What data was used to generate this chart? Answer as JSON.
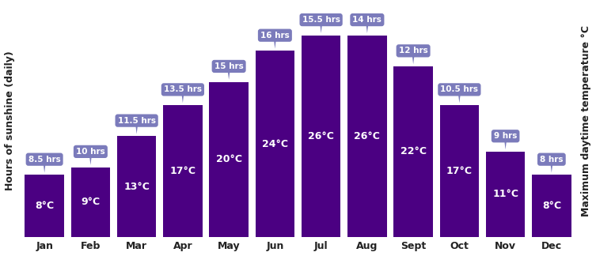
{
  "months": [
    "Jan",
    "Feb",
    "Mar",
    "Apr",
    "May",
    "Jun",
    "Jul",
    "Aug",
    "Sept",
    "Oct",
    "Nov",
    "Dec"
  ],
  "temperatures": [
    8,
    9,
    13,
    17,
    20,
    24,
    26,
    26,
    22,
    17,
    11,
    8
  ],
  "sunshine_hours": [
    8.5,
    10,
    11.5,
    13.5,
    15,
    16,
    15.5,
    14,
    12,
    10.5,
    9,
    8
  ],
  "temp_labels": [
    "8°C",
    "9°C",
    "13°C",
    "17°C",
    "20°C",
    "24°C",
    "26°C",
    "26°C",
    "22°C",
    "17°C",
    "11°C",
    "8°C"
  ],
  "hours_labels": [
    "8.5 hrs",
    "10 hrs",
    "11.5 hrs",
    "13.5 hrs",
    "15 hrs",
    "16 hrs",
    "15.5 hrs",
    "14 hrs",
    "12 hrs",
    "10.5 hrs",
    "9 hrs",
    "8 hrs"
  ],
  "bar_color": "#4B0082",
  "tooltip_color": "#7B7BBB",
  "tooltip_text_color": "#ffffff",
  "temp_text_color": "#ffffff",
  "ylabel_left": "Hours of sunshine (daily)",
  "ylabel_right": "Maximum daytime temperature °C",
  "ylim": [
    0,
    30
  ],
  "background_color": "#ffffff",
  "bar_width": 0.85
}
